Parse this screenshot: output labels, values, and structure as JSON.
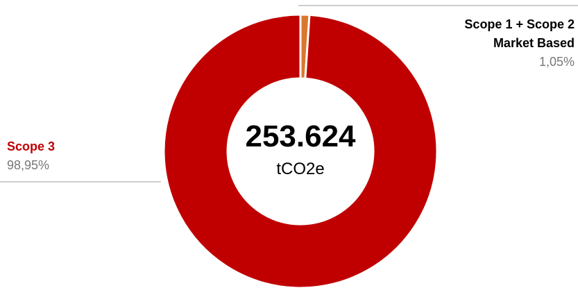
{
  "chart_data": {
    "type": "pie",
    "categories": [
      "Scope 1 + Scope 2 Market Based",
      "Scope 3"
    ],
    "values": [
      1.05,
      98.95
    ],
    "value_labels": [
      "1,05%",
      "98,95%"
    ],
    "colors": [
      "#d9782d",
      "#c00000"
    ],
    "label_colors": [
      "#000000",
      "#c00000"
    ],
    "center_text": "253.624",
    "center_unit": "tCO2e"
  }
}
